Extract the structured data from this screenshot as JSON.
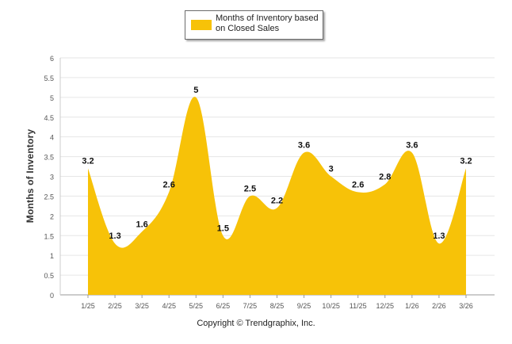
{
  "chart_data": {
    "type": "area",
    "categories": [
      "1/25",
      "2/25",
      "3/25",
      "4/25",
      "5/25",
      "6/25",
      "7/25",
      "8/25",
      "9/25",
      "10/25",
      "11/25",
      "12/25",
      "1/26",
      "2/26",
      "3/26"
    ],
    "series": [
      {
        "name": "Months of Inventory based on Closed Sales",
        "values": [
          3.2,
          1.3,
          1.6,
          2.6,
          5,
          1.5,
          2.5,
          2.2,
          3.6,
          3,
          2.6,
          2.8,
          3.6,
          1.3,
          3.2
        ]
      }
    ],
    "data_labels": [
      "3.2",
      "1.3",
      "1.6",
      "2.6",
      "5",
      "1.5",
      "2.5",
      "2.2",
      "3.6",
      "3",
      "2.6",
      "2.8",
      "3.6",
      "1.3",
      "3.2"
    ],
    "ylabel": "Months of Inventory",
    "ylim": [
      0,
      6
    ],
    "yticks": [
      "0",
      "0.5",
      "1",
      "1.5",
      "2",
      "2.5",
      "3",
      "3.5",
      "4",
      "4.5",
      "5",
      "5.5",
      "6"
    ],
    "grid": true,
    "legend_position": "top-center",
    "fill_color": "#F7C208"
  },
  "legend": {
    "label": "Months of Inventory based on Closed Sales",
    "color": "#F7C208"
  },
  "footer": {
    "copyright": "Copyright © Trendgraphix, Inc."
  }
}
